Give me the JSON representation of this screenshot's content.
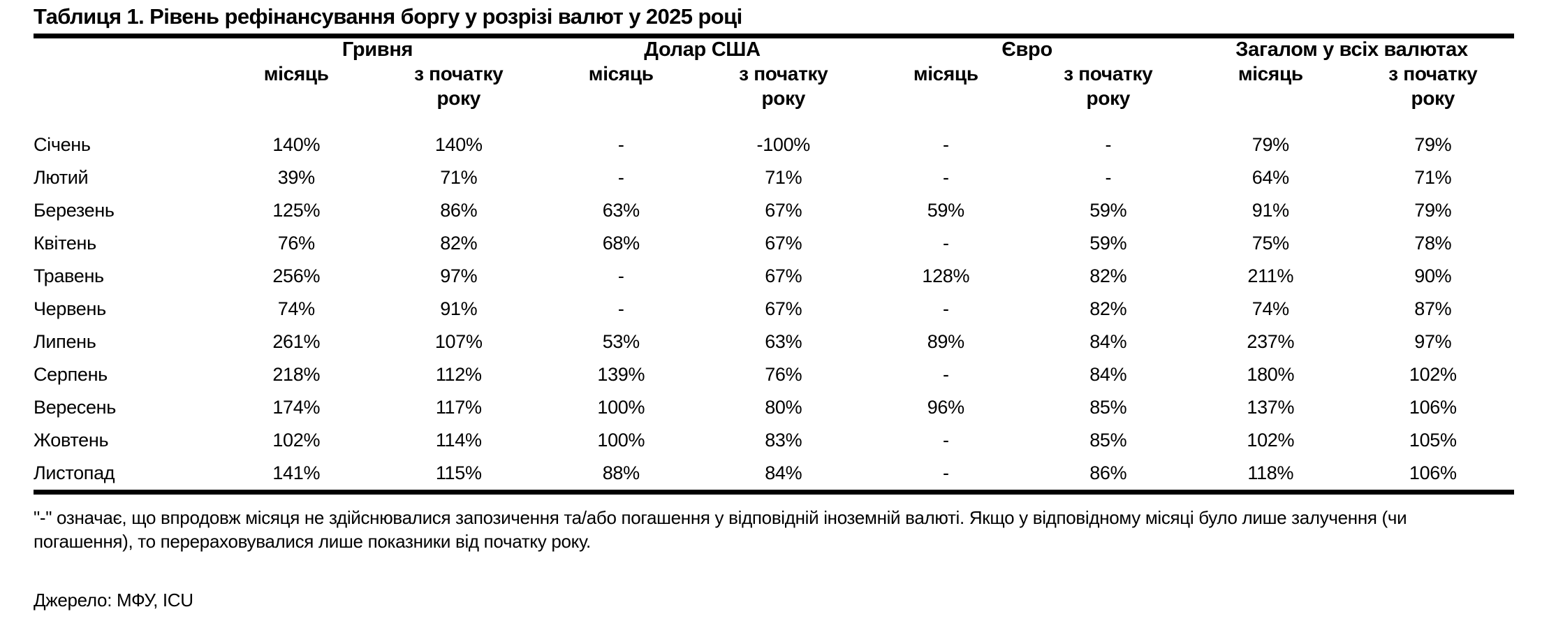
{
  "title": "Таблиця 1. Рівень рефінансування боргу у розрізі валют у 2025 році",
  "colors": {
    "text": "#000000",
    "background": "#ffffff",
    "rule": "#000000"
  },
  "table": {
    "month_header": "",
    "groups": [
      {
        "label": "Гривня",
        "sub": [
          "місяць",
          "з початку\nроку"
        ]
      },
      {
        "label": "Долар США",
        "sub": [
          "місяць",
          "з початку\nроку"
        ]
      },
      {
        "label": "Євро",
        "sub": [
          "місяць",
          "з початку\nроку"
        ]
      },
      {
        "label": "Загалом у всіх валютах",
        "sub": [
          "місяць",
          "з початку\nроку"
        ]
      }
    ],
    "rows": [
      {
        "month": "Січень",
        "values": [
          "140%",
          "140%",
          "-",
          "-100%",
          "-",
          "-",
          "79%",
          "79%"
        ]
      },
      {
        "month": "Лютий",
        "values": [
          "39%",
          "71%",
          "-",
          "71%",
          "-",
          "-",
          "64%",
          "71%"
        ]
      },
      {
        "month": "Березень",
        "values": [
          "125%",
          "86%",
          "63%",
          "67%",
          "59%",
          "59%",
          "91%",
          "79%"
        ]
      },
      {
        "month": "Квітень",
        "values": [
          "76%",
          "82%",
          "68%",
          "67%",
          "-",
          "59%",
          "75%",
          "78%"
        ]
      },
      {
        "month": "Травень",
        "values": [
          "256%",
          "97%",
          "-",
          "67%",
          "128%",
          "82%",
          "211%",
          "90%"
        ]
      },
      {
        "month": "Червень",
        "values": [
          "74%",
          "91%",
          "-",
          "67%",
          "-",
          "82%",
          "74%",
          "87%"
        ]
      },
      {
        "month": "Липень",
        "values": [
          "261%",
          "107%",
          "53%",
          "63%",
          "89%",
          "84%",
          "237%",
          "97%"
        ]
      },
      {
        "month": "Серпень",
        "values": [
          "218%",
          "112%",
          "139%",
          "76%",
          "-",
          "84%",
          "180%",
          "102%"
        ]
      },
      {
        "month": "Вересень",
        "values": [
          "174%",
          "117%",
          "100%",
          "80%",
          "96%",
          "85%",
          "137%",
          "106%"
        ]
      },
      {
        "month": "Жовтень",
        "values": [
          "102%",
          "114%",
          "100%",
          "83%",
          "-",
          "85%",
          "102%",
          "105%"
        ]
      },
      {
        "month": "Листопад",
        "values": [
          "141%",
          "115%",
          "88%",
          "84%",
          "-",
          "86%",
          "118%",
          "106%"
        ]
      }
    ]
  },
  "footnote": "\"-\" означає, що впродовж місяця не здійснювалися запозичення та/або погашення у відповідній іноземній валюті. Якщо у відповідному місяці було лише залучення (чи\nпогашення), то перераховувалися лише показники від початку року.",
  "source": "Джерело: МФУ, ICU"
}
